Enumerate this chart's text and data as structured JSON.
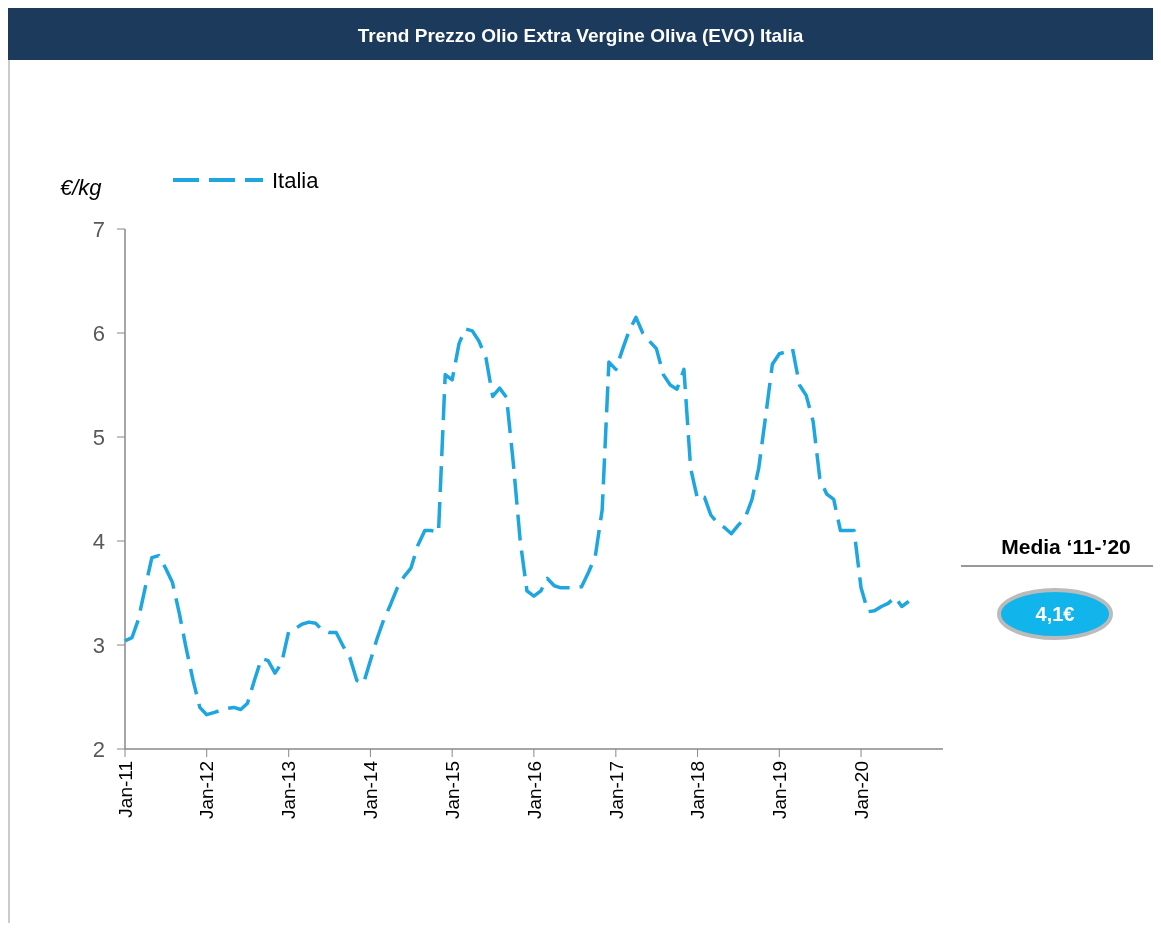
{
  "chart_data": {
    "type": "line",
    "title": "Trend Prezzo Olio Extra Vergine Oliva (EVO) Italia",
    "ylabel": "€/kg",
    "x": [
      "2011-01",
      "2011-02",
      "2011-03",
      "2011-04",
      "2011-05",
      "2011-06",
      "2011-07",
      "2011-08",
      "2011-09",
      "2011-10",
      "2011-11",
      "2011-12",
      "2012-01",
      "2012-02",
      "2012-03",
      "2012-04",
      "2012-05",
      "2012-06",
      "2012-07",
      "2012-08",
      "2012-09",
      "2012-10",
      "2012-11",
      "2012-12",
      "2013-01",
      "2013-02",
      "2013-03",
      "2013-04",
      "2013-05",
      "2013-06",
      "2013-07",
      "2013-08",
      "2013-09",
      "2013-10",
      "2013-11",
      "2013-12",
      "2014-01",
      "2014-02",
      "2014-03",
      "2014-04",
      "2014-05",
      "2014-06",
      "2014-07",
      "2014-08",
      "2014-09",
      "2014-10",
      "2014-11",
      "2014-12",
      "2015-01",
      "2015-02",
      "2015-03",
      "2015-04",
      "2015-05",
      "2015-06",
      "2015-07",
      "2015-08",
      "2015-09",
      "2015-10",
      "2015-11",
      "2015-12",
      "2016-01",
      "2016-02",
      "2016-03",
      "2016-04",
      "2016-05",
      "2016-06",
      "2016-07",
      "2016-08",
      "2016-09",
      "2016-10",
      "2016-11",
      "2016-12",
      "2017-01",
      "2017-02",
      "2017-03",
      "2017-04",
      "2017-05",
      "2017-06",
      "2017-07",
      "2017-08",
      "2017-09",
      "2017-10",
      "2017-11",
      "2017-12",
      "2018-01",
      "2018-02",
      "2018-03",
      "2018-04",
      "2018-05",
      "2018-06",
      "2018-07",
      "2018-08",
      "2018-09",
      "2018-10",
      "2018-11",
      "2018-12",
      "2019-01",
      "2019-02",
      "2019-03",
      "2019-04",
      "2019-05",
      "2019-06",
      "2019-07",
      "2019-08",
      "2019-09",
      "2019-10",
      "2019-11",
      "2019-12",
      "2020-01",
      "2020-02",
      "2020-03",
      "2020-04",
      "2020-05",
      "2020-06",
      "2020-07",
      "2020-08"
    ],
    "series": [
      {
        "name": "Italia",
        "color": "#1ea6e0",
        "values": [
          3.04,
          3.07,
          3.24,
          3.55,
          3.84,
          3.86,
          3.74,
          3.6,
          3.3,
          2.97,
          2.66,
          2.4,
          2.33,
          2.35,
          2.37,
          2.39,
          2.4,
          2.38,
          2.44,
          2.66,
          2.87,
          2.85,
          2.73,
          2.83,
          3.13,
          3.16,
          3.2,
          3.22,
          3.21,
          3.14,
          3.12,
          3.12,
          2.99,
          2.88,
          2.66,
          2.63,
          2.85,
          3.07,
          3.24,
          3.39,
          3.55,
          3.66,
          3.74,
          3.96,
          4.1,
          4.1,
          4.08,
          5.6,
          5.55,
          5.9,
          6.04,
          6.02,
          5.92,
          5.76,
          5.39,
          5.47,
          5.38,
          4.75,
          4.0,
          3.52,
          3.47,
          3.52,
          3.64,
          3.57,
          3.55,
          3.55,
          3.55,
          3.56,
          3.7,
          3.85,
          4.3,
          5.72,
          5.65,
          5.85,
          6.02,
          6.15,
          6.0,
          5.92,
          5.85,
          5.6,
          5.5,
          5.46,
          5.65,
          4.7,
          4.4,
          4.42,
          4.25,
          4.17,
          4.13,
          4.07,
          4.15,
          4.22,
          4.4,
          4.7,
          5.2,
          5.7,
          5.8,
          5.82,
          5.85,
          5.5,
          5.4,
          5.15,
          4.6,
          4.45,
          4.4,
          4.1,
          4.1,
          4.1,
          3.55,
          3.32,
          3.33,
          3.37,
          3.4,
          3.46,
          3.37,
          3.42
        ]
      }
    ],
    "xlim": [
      "2011-01",
      "2021-01"
    ],
    "xticks": [
      {
        "value": "2011-01",
        "label": "Jan-11"
      },
      {
        "value": "2012-01",
        "label": "Jan-12"
      },
      {
        "value": "2013-01",
        "label": "Jan-13"
      },
      {
        "value": "2014-01",
        "label": "Jan-14"
      },
      {
        "value": "2015-01",
        "label": "Jan-15"
      },
      {
        "value": "2016-01",
        "label": "Jan-16"
      },
      {
        "value": "2017-01",
        "label": "Jan-17"
      },
      {
        "value": "2018-01",
        "label": "Jan-18"
      },
      {
        "value": "2019-01",
        "label": "Jan-19"
      },
      {
        "value": "2020-01",
        "label": "Jan-20"
      }
    ],
    "ylim": [
      2,
      7
    ],
    "yticks": [
      2,
      3,
      4,
      5,
      6,
      7
    ],
    "legend": "top left",
    "line_style": "dashed",
    "marker": "none",
    "grid": false,
    "annotations": [
      "Media ‘11-’20",
      "4,1€"
    ]
  }
}
